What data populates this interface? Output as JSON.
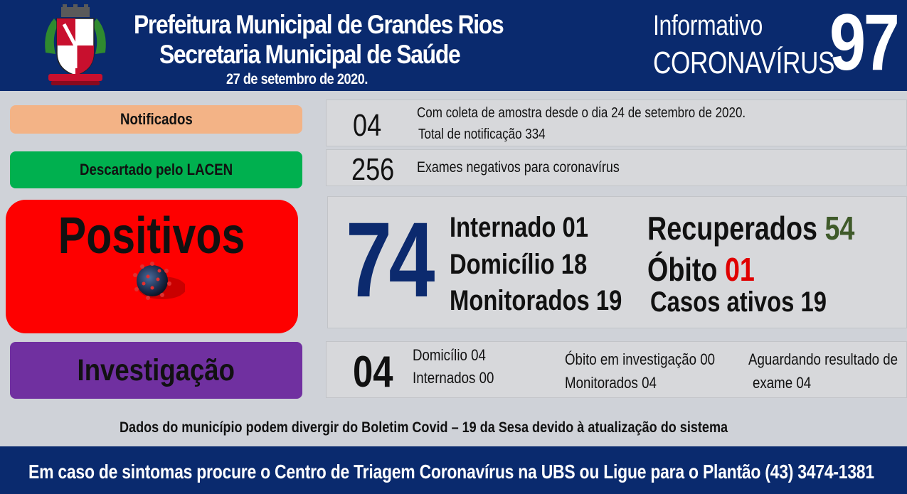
{
  "header": {
    "title_line1": "Prefeitura Municipal de Grandes Rios",
    "title_line2": "Secretaria Municipal de Saúde",
    "date": "27 de setembro  de 2020.",
    "info_line1": "Informativo",
    "info_line2": "CORONAVÍRUS",
    "bulletin_number": "97",
    "crest_icon": "municipal-coat-of-arms-icon"
  },
  "labels": {
    "notified": "Notificados",
    "discarded": "Descartado  pelo LACEN",
    "positive": "Positivos",
    "investigation": "Investigação"
  },
  "notified": {
    "count": "04",
    "note1": "Com coleta de amostra desde o dia 24 de setembro de 2020.",
    "note2": "Total de notificação  334"
  },
  "discarded": {
    "count": "256",
    "note": "Exames negativos  para coronavírus"
  },
  "positive": {
    "count": "74",
    "hospitalized": "Internado 01",
    "home": "Domicílio 18",
    "monitored": "Monitorados 19",
    "recovered_label": "Recuperados",
    "recovered_value": "54",
    "death_label": "Óbito",
    "death_value": "01",
    "active": "Casos ativos 19"
  },
  "investigation": {
    "count": "04",
    "home": "Domicílio 04",
    "hospitalized": "Internados 00",
    "death": "Óbito  em investigação  00",
    "monitored": "Monitorados 04",
    "awaiting_line1": "Aguardando resultado de",
    "awaiting_line2": "exame 04"
  },
  "disclaimer": "Dados do município  podem  divergir do Boletim  Covid – 19 da Sesa devido à atualização  do sistema",
  "footer": "Em caso de sintomas  procure  o Centro de Triagem  Coronavírus  na UBS ou Ligue para o Plantão  (43) 3474-1381",
  "colors": {
    "header_bg": "#0a2a6e",
    "notified": "#f3b386",
    "discarded": "#00b04f",
    "positive": "#fe0000",
    "investigation": "#7030a0",
    "positive_number": "#0c2a6e",
    "recovered_value": "#3f5a2a",
    "death_value": "#e00000"
  }
}
